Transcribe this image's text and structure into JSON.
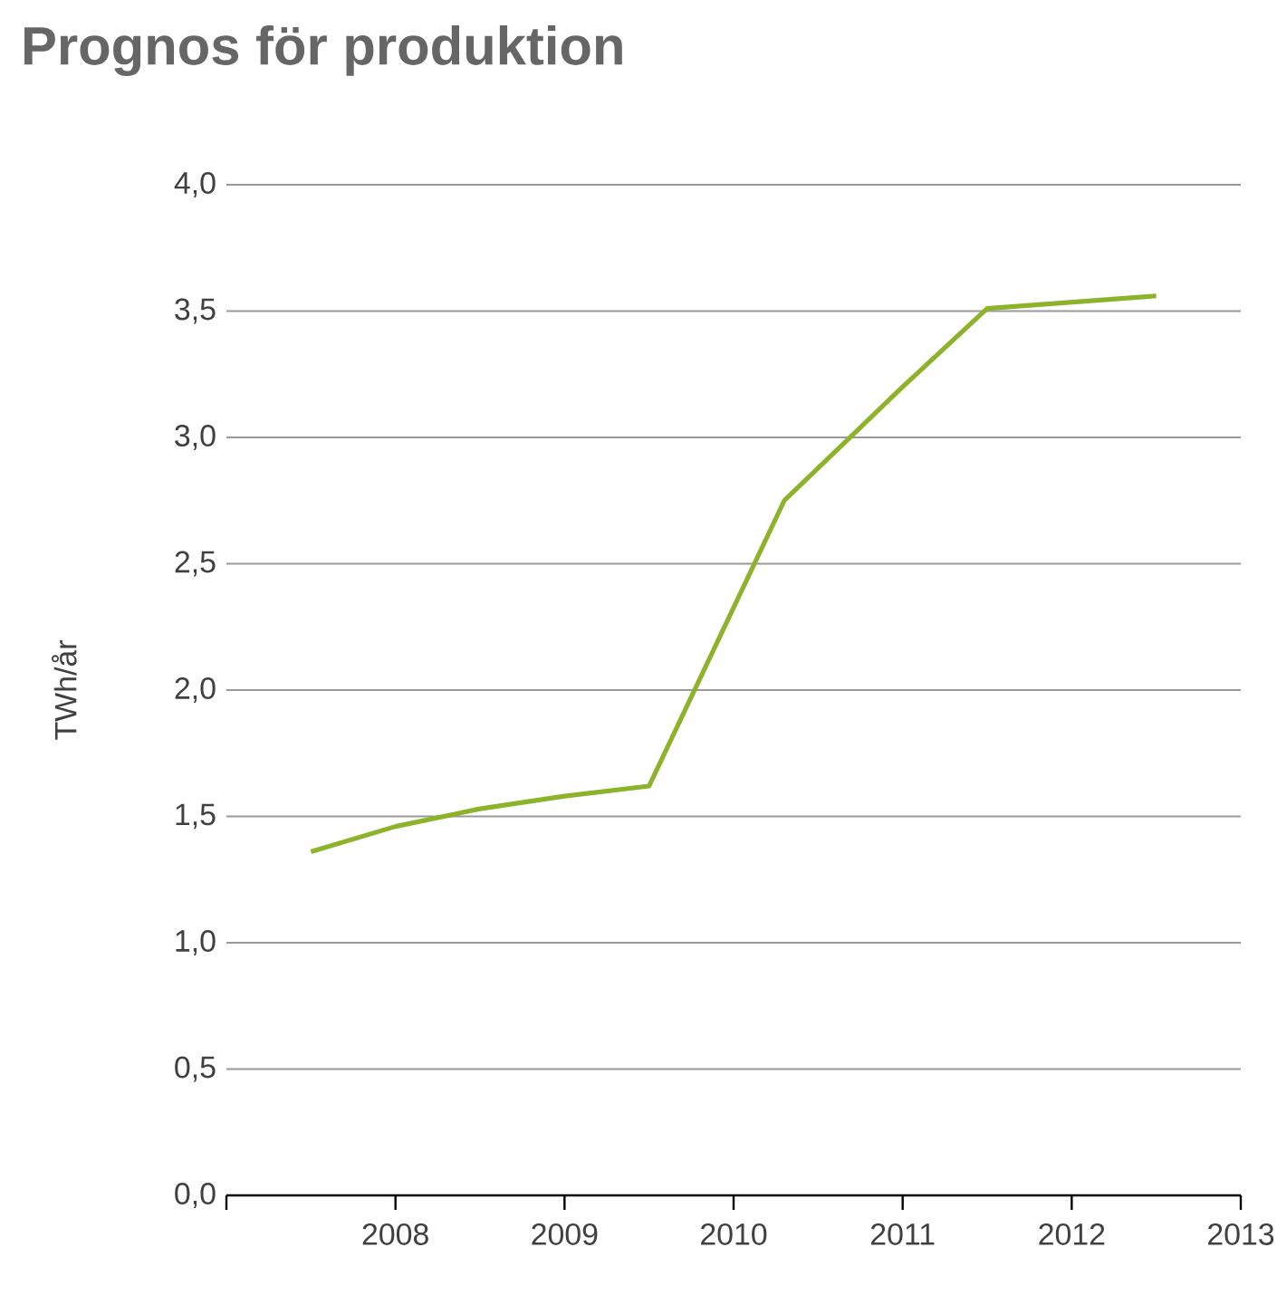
{
  "chart_data": {
    "type": "line",
    "title": "Prognos för produktion",
    "ylabel": "TWh/år",
    "x": [
      2007.5,
      2008,
      2008.5,
      2009,
      2009.5,
      2010.3,
      2011,
      2011.5,
      2012.5
    ],
    "series": [
      {
        "color": "#8db32b",
        "values": [
          1.36,
          1.46,
          1.53,
          1.58,
          1.62,
          2.75,
          3.2,
          3.51,
          3.56
        ]
      }
    ],
    "xlim": [
      2007,
      2013
    ],
    "xticks": [
      {
        "value": 2007,
        "label": null
      },
      2008,
      2009,
      2010,
      2011,
      2012,
      2013
    ],
    "ylim": [
      0,
      4
    ],
    "yticks": [
      {
        "value": 0,
        "label": "0,0"
      },
      {
        "value": 0.5,
        "label": "0,5"
      },
      {
        "value": 1,
        "label": "1,0"
      },
      {
        "value": 1.5,
        "label": "1,5"
      },
      {
        "value": 2,
        "label": "2,0"
      },
      {
        "value": 2.5,
        "label": "2,5"
      },
      {
        "value": 3,
        "label": "3,0"
      },
      {
        "value": 3.5,
        "label": "3,5"
      },
      {
        "value": 4,
        "label": "4,0"
      }
    ],
    "grid": "y",
    "marker": "none",
    "line_style": "solid"
  }
}
